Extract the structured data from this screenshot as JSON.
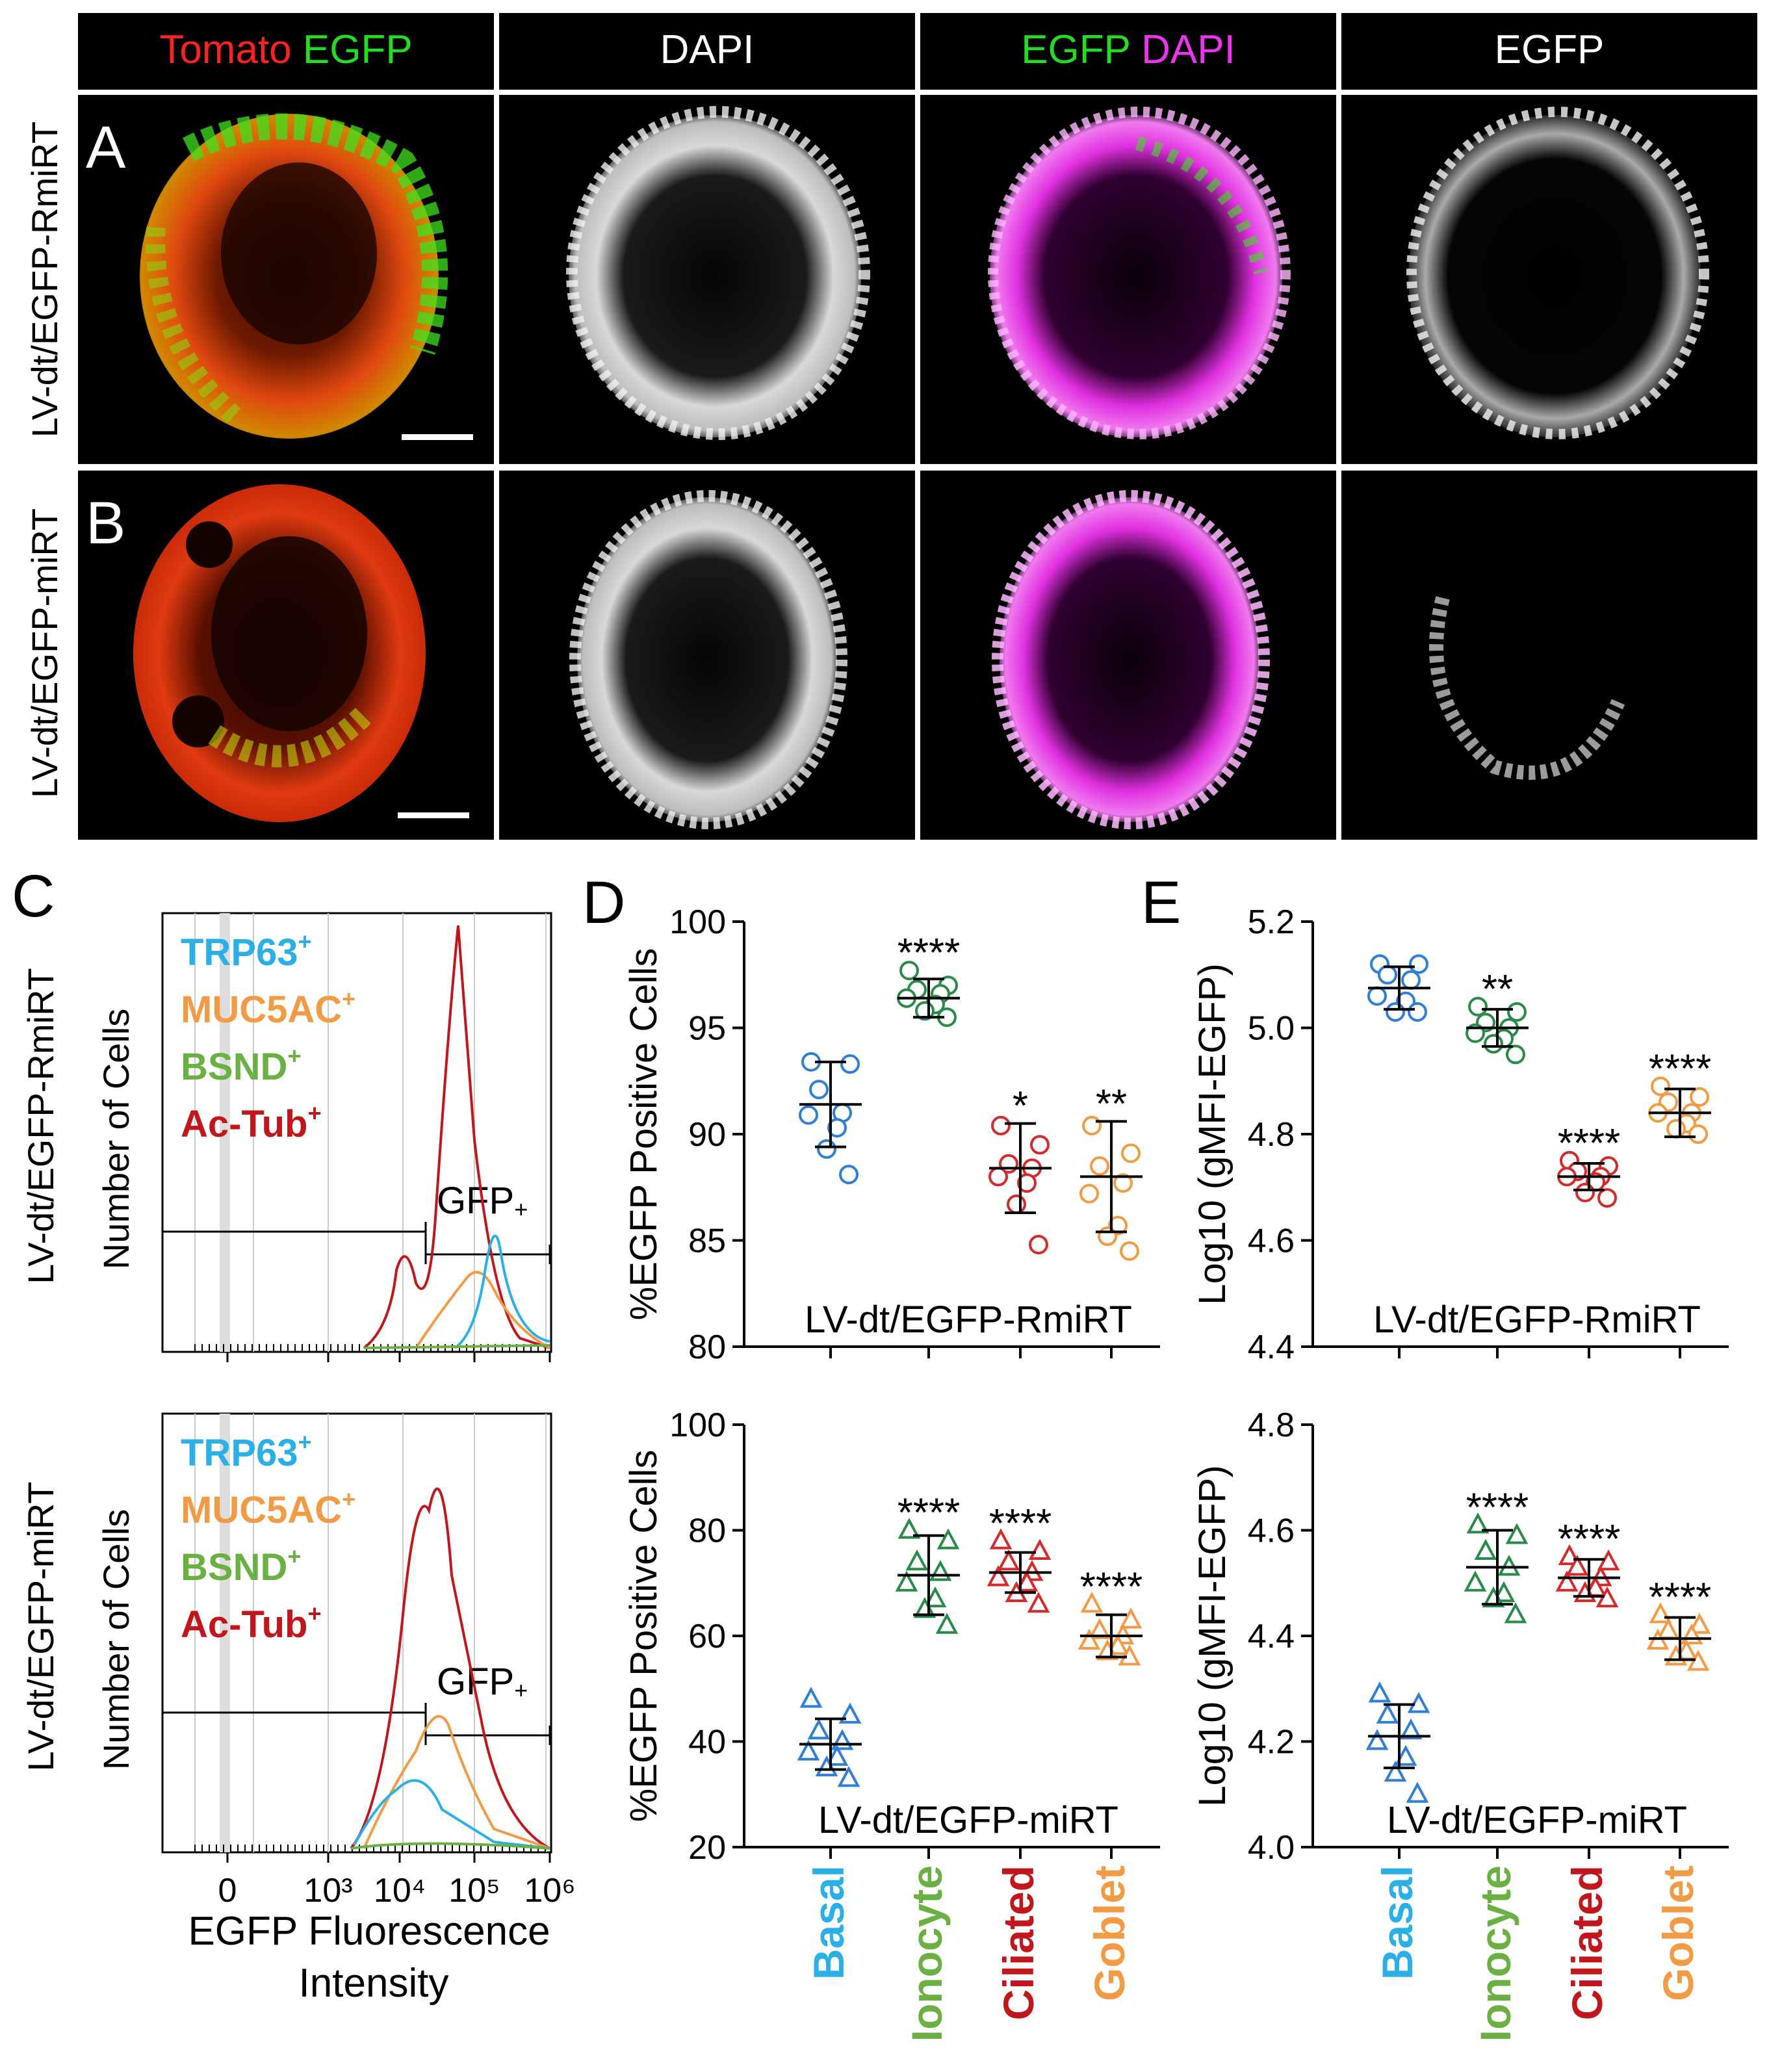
{
  "panel_letters": {
    "a": "A",
    "b": "B",
    "c": "C",
    "d": "D",
    "e": "E"
  },
  "header": {
    "col1": [
      {
        "text": "Tomato",
        "color": "#ff2020"
      },
      {
        "text": " EGFP",
        "color": "#22dd22"
      }
    ],
    "col2": [
      {
        "text": "DAPI",
        "color": "#ffffff"
      }
    ],
    "col3": [
      {
        "text": "EGFP",
        "color": "#22dd22"
      },
      {
        "text": " DAPI",
        "color": "#ee33ee"
      }
    ],
    "col4": [
      {
        "text": "EGFP",
        "color": "#ffffff"
      }
    ]
  },
  "row_labels": {
    "rmirt": "LV-dt/EGFP-RmiRT",
    "mirt": "LV-dt/EGFP-miRT"
  },
  "histogram": {
    "y_label": "Number of Cells",
    "x_label_line1": "EGFP Fluorescence",
    "x_label_line2": "Intensity",
    "gate_label": "GFP+",
    "tick_labels": [
      "0",
      "10³",
      "10⁴",
      "10⁵",
      "10⁶"
    ],
    "legend": [
      {
        "name": "TRP63",
        "sup": "+",
        "color": "#2ab0e6"
      },
      {
        "name": "MUC5AC",
        "sup": "+",
        "color": "#f39a45"
      },
      {
        "name": "BSND",
        "sup": "+",
        "color": "#6ab043"
      },
      {
        "name": "Ac-Tub",
        "sup": "+",
        "color": "#c0161c"
      }
    ]
  },
  "categories": [
    {
      "name": "Basal",
      "color": "#2ab0e6"
    },
    {
      "name": "Ionocyte",
      "color": "#6ab043"
    },
    {
      "name": "Ciliated",
      "color": "#c0161c"
    },
    {
      "name": "Goblet",
      "color": "#f39a45"
    }
  ],
  "marker_colors": [
    "#2f7fd6",
    "#2a8a4a",
    "#d42a2a",
    "#f39a45"
  ],
  "chart_data": [
    {
      "type": "scatter",
      "panel": "D",
      "vector": "LV-dt/EGFP-RmiRT",
      "ylabel": "%EGFP Positive Cells",
      "ylim": [
        80,
        100
      ],
      "yticks": [
        80,
        85,
        90,
        95,
        100
      ],
      "marker": "circle",
      "categories": [
        "Basal",
        "Ionocyte",
        "Ciliated",
        "Goblet"
      ],
      "means": [
        91.4,
        96.4,
        88.4,
        88.0
      ],
      "sd": [
        2.0,
        0.9,
        2.1,
        2.6
      ],
      "significance": [
        "",
        "****",
        "*",
        "**"
      ],
      "points": [
        [
          93.4,
          93.3,
          92.1,
          91.0,
          90.9,
          90.3,
          89.3,
          88.1
        ],
        [
          97.7,
          97.0,
          96.8,
          96.6,
          96.4,
          96.1,
          95.8,
          95.5
        ],
        [
          90.4,
          89.5,
          88.6,
          88.4,
          88.0,
          87.7,
          86.7,
          84.8
        ],
        [
          90.4,
          89.1,
          88.5,
          87.7,
          87.2,
          85.7,
          85.2,
          84.5
        ]
      ]
    },
    {
      "type": "scatter",
      "panel": "E",
      "vector": "LV-dt/EGFP-RmiRT",
      "ylabel": "Log10 (gMFI-EGFP)",
      "ylim": [
        4.4,
        5.2
      ],
      "yticks": [
        4.4,
        4.6,
        4.8,
        5.0,
        5.2
      ],
      "marker": "circle",
      "categories": [
        "Basal",
        "Ionocyte",
        "Ciliated",
        "Goblet"
      ],
      "means": [
        5.075,
        5.0,
        4.72,
        4.84
      ],
      "sd": [
        0.04,
        0.035,
        0.025,
        0.045
      ],
      "significance": [
        "",
        "**",
        "****",
        "****"
      ],
      "points": [
        [
          5.12,
          5.12,
          5.1,
          5.09,
          5.06,
          5.05,
          5.03,
          5.03
        ],
        [
          5.04,
          5.03,
          5.01,
          5.0,
          4.99,
          4.98,
          4.97,
          4.95
        ],
        [
          4.75,
          4.74,
          4.73,
          4.72,
          4.72,
          4.71,
          4.69,
          4.68
        ],
        [
          4.89,
          4.87,
          4.86,
          4.84,
          4.84,
          4.82,
          4.81,
          4.8
        ]
      ]
    },
    {
      "type": "scatter",
      "panel": "D",
      "vector": "LV-dt/EGFP-miRT",
      "ylabel": "%EGFP Positive Cells",
      "ylim": [
        20,
        100
      ],
      "yticks": [
        20,
        40,
        60,
        80,
        100
      ],
      "marker": "triangle",
      "categories": [
        "Basal",
        "Ionocyte",
        "Ciliated",
        "Goblet"
      ],
      "means": [
        39.5,
        71.5,
        72.0,
        60.0
      ],
      "sd": [
        4.8,
        7.5,
        3.8,
        4.0
      ],
      "significance": [
        "",
        "****",
        "****",
        "****"
      ],
      "points": [
        [
          48,
          45,
          42,
          40,
          38,
          37,
          35,
          33
        ],
        [
          80,
          78,
          74,
          72,
          70,
          67,
          65,
          62
        ],
        [
          78,
          76,
          74,
          72,
          71,
          70,
          68,
          66
        ],
        [
          66,
          63,
          61,
          60,
          59,
          58,
          57,
          56
        ]
      ]
    },
    {
      "type": "scatter",
      "panel": "E",
      "vector": "LV-dt/EGFP-miRT",
      "ylabel": "Log10 (gMFI-EGFP)",
      "ylim": [
        4.0,
        4.8
      ],
      "yticks": [
        4.0,
        4.2,
        4.4,
        4.6,
        4.8
      ],
      "marker": "triangle",
      "categories": [
        "Basal",
        "Ionocyte",
        "Ciliated",
        "Goblet"
      ],
      "means": [
        4.21,
        4.53,
        4.51,
        4.395
      ],
      "sd": [
        0.06,
        0.07,
        0.035,
        0.04
      ],
      "significance": [
        "",
        "****",
        "****",
        "****"
      ],
      "points": [
        [
          4.29,
          4.27,
          4.25,
          4.22,
          4.2,
          4.17,
          4.14,
          4.1
        ],
        [
          4.61,
          4.59,
          4.56,
          4.53,
          4.5,
          4.48,
          4.47,
          4.44
        ],
        [
          4.55,
          4.54,
          4.53,
          4.51,
          4.5,
          4.49,
          4.48,
          4.47
        ],
        [
          4.44,
          4.42,
          4.41,
          4.4,
          4.39,
          4.37,
          4.36,
          4.35
        ]
      ]
    }
  ]
}
